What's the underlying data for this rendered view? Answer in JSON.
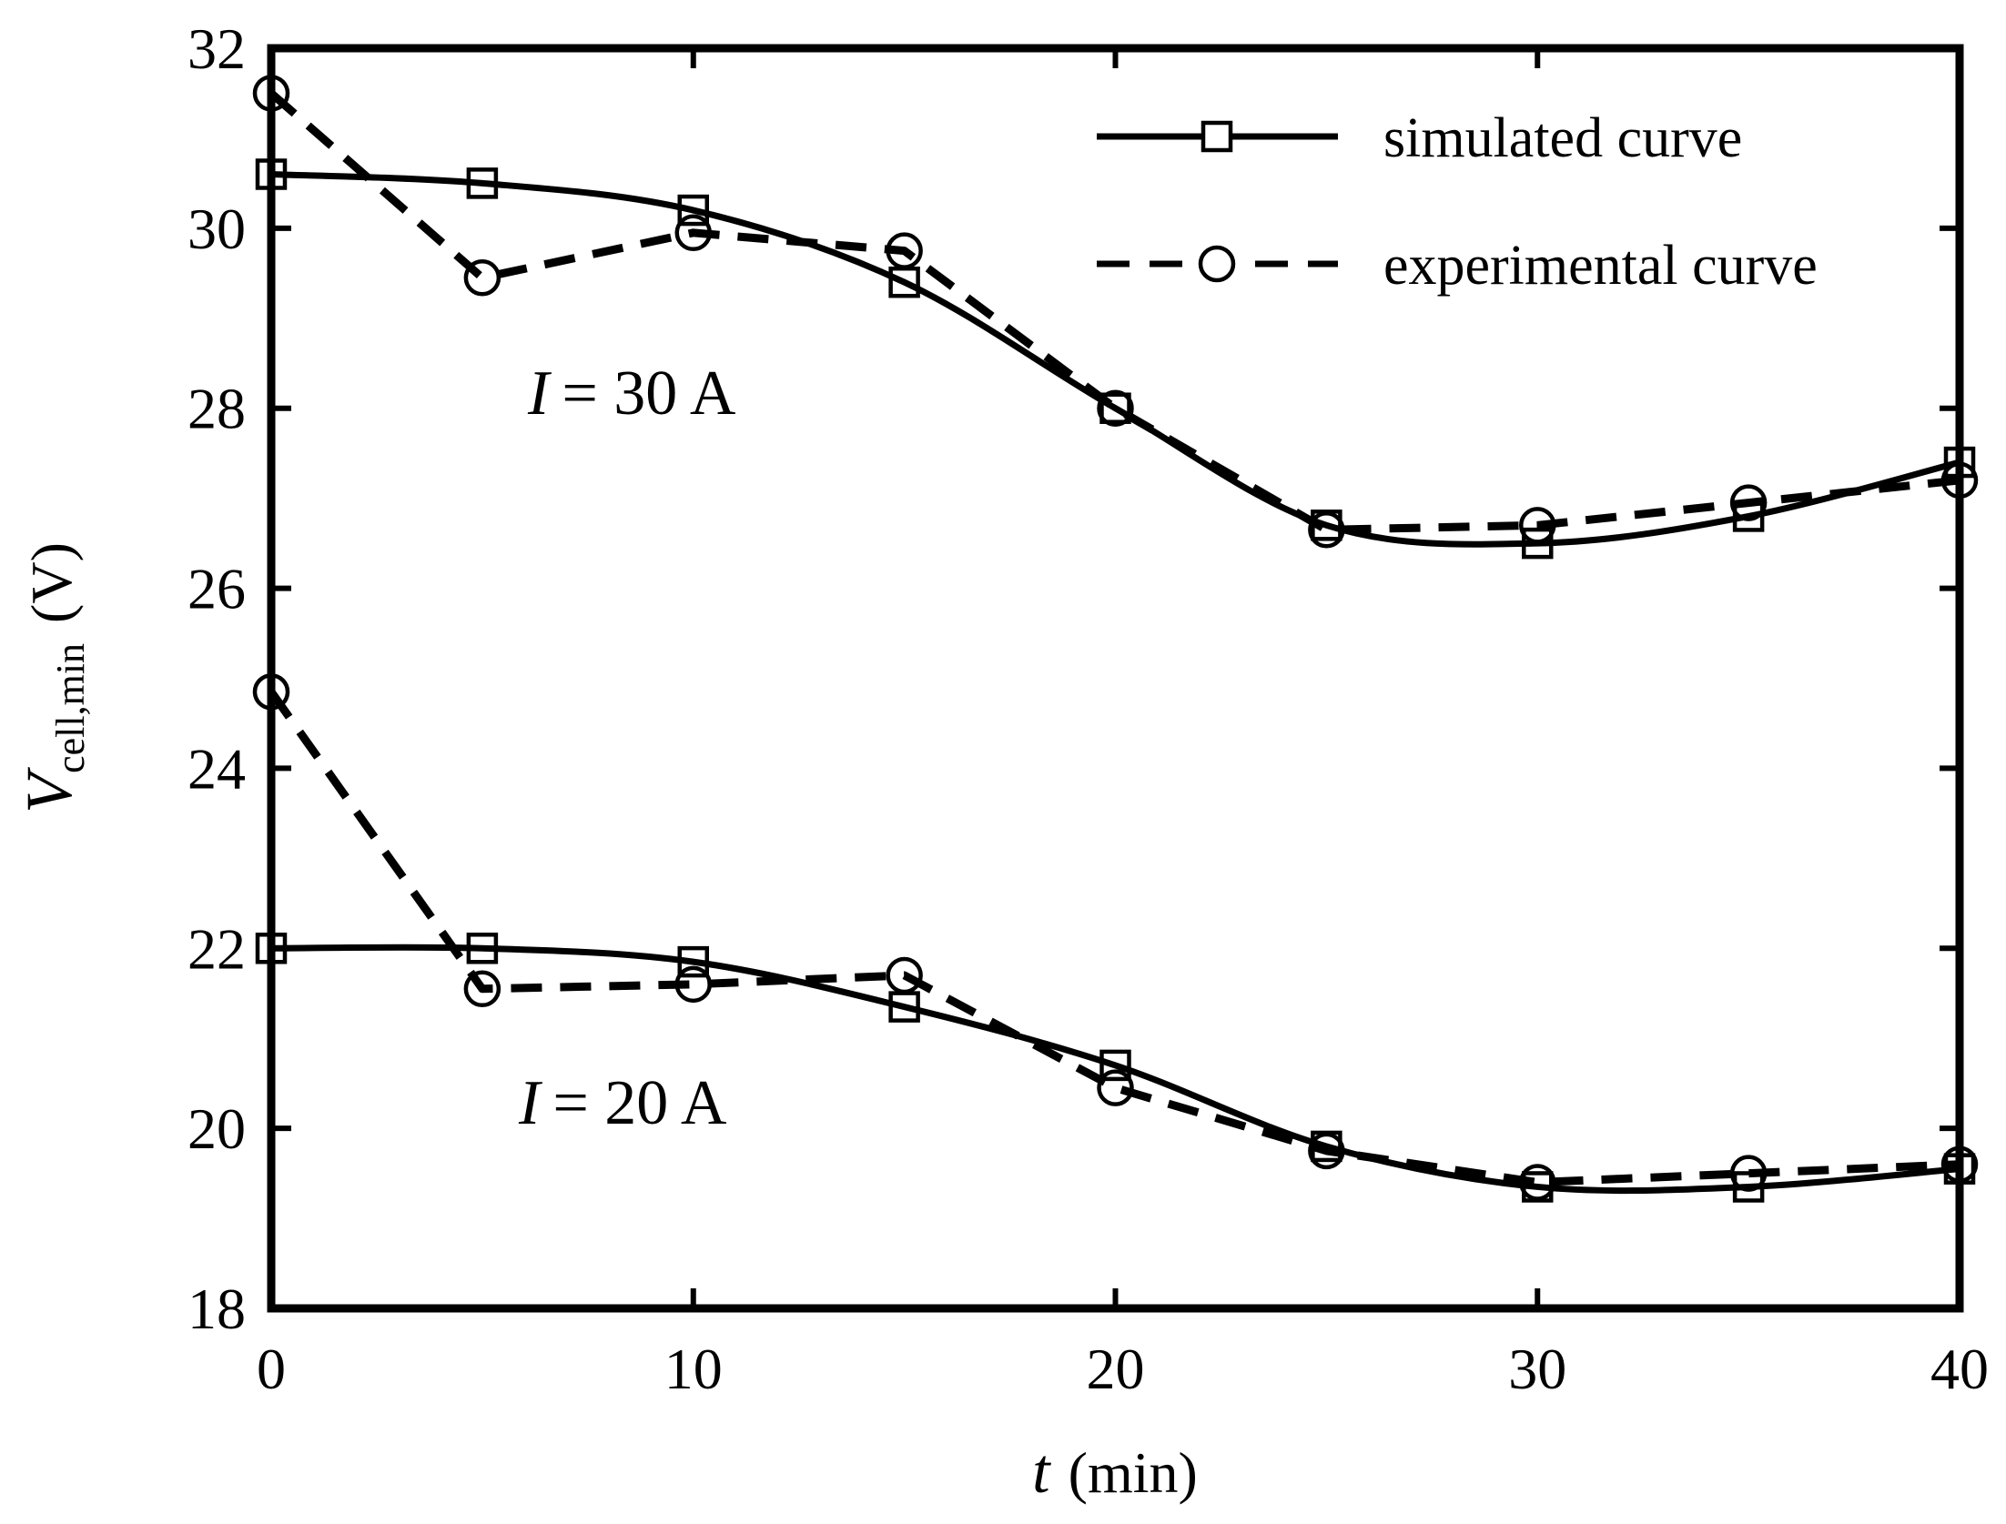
{
  "chart_data": {
    "type": "line",
    "title": "",
    "xlabel": {
      "symbol": "t",
      "unit": "(min)"
    },
    "ylabel": {
      "symbol": "V",
      "subscript": "cell,min",
      "unit": "(V)"
    },
    "xlim": [
      0,
      40
    ],
    "ylim": [
      18,
      32
    ],
    "xticks": [
      0,
      10,
      20,
      30,
      40
    ],
    "yticks": [
      18,
      20,
      22,
      24,
      26,
      28,
      30,
      32
    ],
    "grid": false,
    "legend_position": "top-right",
    "legend": [
      {
        "label": "simulated curve",
        "style": "solid",
        "marker": "square"
      },
      {
        "label": "experimental curve",
        "style": "dashed",
        "marker": "circle"
      }
    ],
    "annotations": [
      {
        "symbol": "I",
        "text": "= 30 A",
        "group": "30A"
      },
      {
        "symbol": "I",
        "text": "= 20 A",
        "group": "20A"
      }
    ],
    "series": [
      {
        "name": "simulated curve (I = 30 A)",
        "group": "30A",
        "style": "solid",
        "marker": "square",
        "x": [
          0,
          5,
          10,
          15,
          20,
          25,
          30,
          35,
          40
        ],
        "y": [
          30.6,
          30.5,
          30.2,
          29.4,
          28.0,
          26.7,
          26.5,
          26.8,
          27.4
        ]
      },
      {
        "name": "experimental curve (I = 30 A)",
        "group": "30A",
        "style": "dashed",
        "marker": "circle",
        "x": [
          0,
          5,
          10,
          15,
          20,
          25,
          30,
          35,
          40
        ],
        "y": [
          31.5,
          29.45,
          29.95,
          29.75,
          28.0,
          26.65,
          26.7,
          26.95,
          27.2
        ]
      },
      {
        "name": "simulated curve (I = 20 A)",
        "group": "20A",
        "style": "solid",
        "marker": "square",
        "x": [
          0,
          5,
          10,
          15,
          20,
          25,
          30,
          35,
          40
        ],
        "y": [
          22.0,
          22.0,
          21.85,
          21.35,
          20.7,
          19.8,
          19.35,
          19.35,
          19.55
        ]
      },
      {
        "name": "experimental curve (I = 20 A)",
        "group": "20A",
        "style": "dashed",
        "marker": "circle",
        "x": [
          0,
          5,
          10,
          15,
          20,
          25,
          30,
          35,
          40
        ],
        "y": [
          24.85,
          21.55,
          21.6,
          21.7,
          20.45,
          19.75,
          19.4,
          19.5,
          19.6
        ]
      }
    ]
  }
}
